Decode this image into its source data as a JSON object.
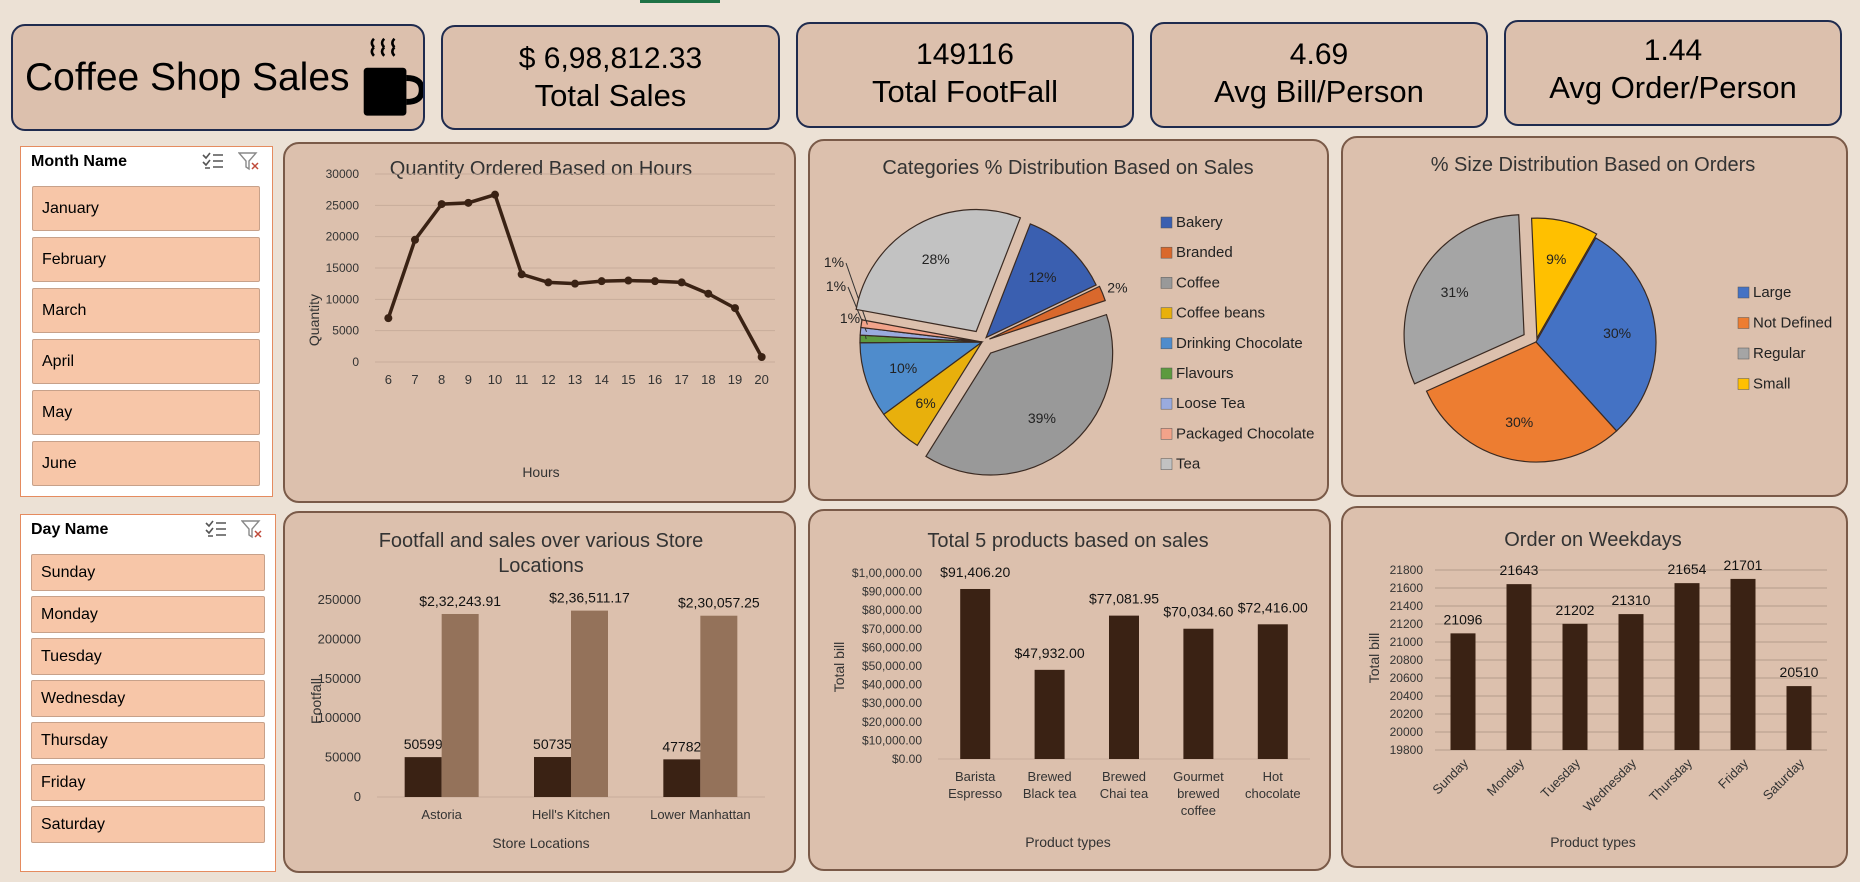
{
  "title": "Coffee Shop Sales",
  "kpis": [
    {
      "value": "$ 6,98,812.33",
      "label": "Total Sales"
    },
    {
      "value": "149116",
      "label": "Total FootFall"
    },
    {
      "value": "4.69",
      "label": "Avg Bill/Person"
    },
    {
      "value": "1.44",
      "label": "Avg Order/Person"
    }
  ],
  "month_slicer": {
    "header": "Month Name",
    "items": [
      "January",
      "February",
      "March",
      "April",
      "May",
      "June"
    ]
  },
  "day_slicer": {
    "header": "Day Name",
    "items": [
      "Sunday",
      "Monday",
      "Tuesday",
      "Wednesday",
      "Thursday",
      "Friday",
      "Saturday"
    ]
  },
  "colors": {
    "dark_brown": "#3a2214",
    "mid_brown": "#94725a",
    "panel": "#dcc0ad",
    "border": "#7a5a48"
  },
  "chart_data": [
    {
      "id": "hours",
      "type": "line",
      "title": "Quantity Ordered Based on Hours",
      "xlabel": "Hours",
      "ylabel": "Quantity",
      "x": [
        "6",
        "7",
        "8",
        "9",
        "10",
        "11",
        "12",
        "13",
        "14",
        "15",
        "16",
        "17",
        "18",
        "19",
        "20"
      ],
      "values": [
        7000,
        19500,
        25200,
        25400,
        26700,
        14000,
        12700,
        12500,
        12900,
        13000,
        12900,
        12700,
        10900,
        8600,
        800
      ],
      "ylim": [
        0,
        30000
      ],
      "yticks": [
        "0",
        "5000",
        "10000",
        "15000",
        "20000",
        "25000",
        "30000"
      ],
      "grid": true
    },
    {
      "id": "categories",
      "type": "pie",
      "title": "Categories % Distribution Based on Sales",
      "legend_position": "right",
      "slices": [
        {
          "name": "Bakery",
          "value": 12,
          "label": "12%",
          "color": "#3a5fb0"
        },
        {
          "name": "Branded",
          "value": 2,
          "label": "2%",
          "color": "#d9682c"
        },
        {
          "name": "Coffee",
          "value": 39,
          "label": "39%",
          "color": "#999999"
        },
        {
          "name": "Coffee beans",
          "value": 6,
          "label": "6%",
          "color": "#e8b00c"
        },
        {
          "name": "Drinking Chocolate",
          "value": 10,
          "label": "10%",
          "color": "#4f8ccc"
        },
        {
          "name": "Flavours",
          "value": 1,
          "label": "1%",
          "color": "#5c9a3e"
        },
        {
          "name": "Loose Tea",
          "value": 1,
          "label": "1%",
          "color": "#9aabde"
        },
        {
          "name": "Packaged Chocolate",
          "value": 1,
          "label": "1%",
          "color": "#f2a38a"
        },
        {
          "name": "Tea",
          "value": 28,
          "label": "28%",
          "color": "#c2c2c2"
        }
      ]
    },
    {
      "id": "sizes",
      "type": "pie",
      "title": "% Size Distribution Based on Orders",
      "legend_position": "right",
      "slices": [
        {
          "name": "Large",
          "value": 30,
          "label": "30%",
          "color": "#4472c4"
        },
        {
          "name": "Not Defined",
          "value": 30,
          "label": "30%",
          "color": "#ed7d31"
        },
        {
          "name": "Regular",
          "value": 31,
          "label": "31%",
          "color": "#a5a5a5"
        },
        {
          "name": "Small",
          "value": 9,
          "label": "9%",
          "color": "#ffc000"
        }
      ]
    },
    {
      "id": "stores",
      "type": "bar",
      "title": "Footfall and sales over various Store Locations",
      "xlabel": "Store Locations",
      "ylabel": "Footfall",
      "categories": [
        "Astoria",
        "Hell's Kitchen",
        "Lower Manhattan"
      ],
      "series": [
        {
          "values": [
            50599,
            50735,
            47782
          ],
          "labels": [
            "50599",
            "50735",
            "47782"
          ],
          "color": "#3a2214"
        },
        {
          "values": [
            232244,
            236511,
            230057
          ],
          "labels": [
            "$2,32,243.91",
            "$2,36,511.17",
            "$2,30,057.25"
          ],
          "color": "#94725a"
        }
      ],
      "ylim": [
        0,
        250000
      ],
      "yticks": [
        "0",
        "50000",
        "100000",
        "150000",
        "200000",
        "250000"
      ]
    },
    {
      "id": "products",
      "type": "bar",
      "title": "Total 5 products based on sales",
      "xlabel": "Product types",
      "ylabel": "Total bill",
      "categories": [
        [
          "Barista",
          "Espresso"
        ],
        [
          "Brewed",
          "Black tea"
        ],
        [
          "Brewed",
          "Chai tea"
        ],
        [
          "Gourmet",
          "brewed",
          "coffee"
        ],
        [
          "Hot",
          "chocolate"
        ]
      ],
      "values": [
        91406.2,
        47932.0,
        77081.95,
        70034.6,
        72416.0
      ],
      "value_labels": [
        "$91,406.20",
        "$47,932.00",
        "$77,081.95",
        "$70,034.60",
        "$72,416.00"
      ],
      "ylim": [
        0,
        100000
      ],
      "yticks": [
        "$0.00",
        "$10,000.00",
        "$20,000.00",
        "$30,000.00",
        "$40,000.00",
        "$50,000.00",
        "$60,000.00",
        "$70,000.00",
        "$80,000.00",
        "$90,000.00",
        "$1,00,000.00"
      ]
    },
    {
      "id": "weekdays",
      "type": "bar",
      "title": "Order on Weekdays",
      "xlabel": "Product types",
      "ylabel": "Total bill",
      "categories": [
        "Sunday",
        "Monday",
        "Tuesday",
        "Wednesday",
        "Thursday",
        "Friday",
        "Saturday"
      ],
      "values": [
        21096,
        21643,
        21202,
        21310,
        21654,
        21701,
        20510
      ],
      "value_labels": [
        "21096",
        "21643",
        "21202",
        "21310",
        "21654",
        "21701",
        "20510"
      ],
      "ylim": [
        19800,
        21800
      ],
      "yticks": [
        "19800",
        "20000",
        "20200",
        "20400",
        "20600",
        "20800",
        "21000",
        "21200",
        "21400",
        "21600",
        "21800"
      ],
      "grid": true
    }
  ]
}
